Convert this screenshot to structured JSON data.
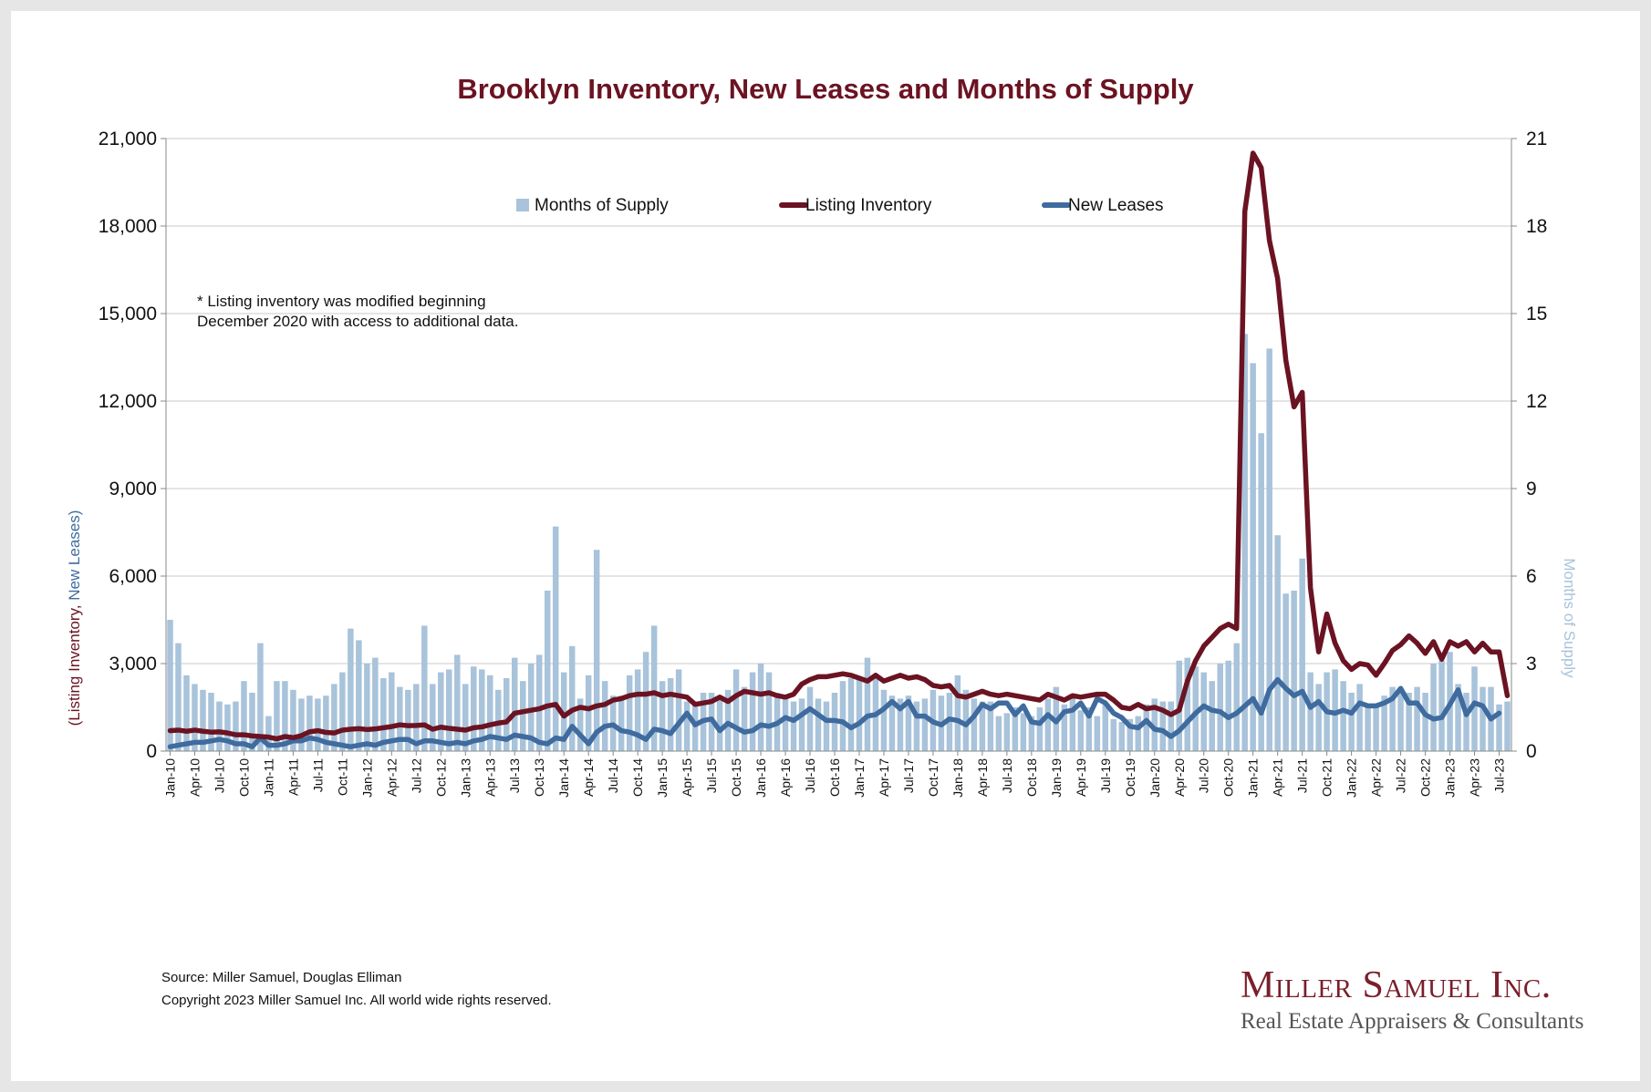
{
  "chart_data": {
    "type": "bar",
    "title": "Brooklyn Inventory, New Leases and Months of Supply",
    "ylabel_left_part1": "(Listing Inventory, ",
    "ylabel_left_part2": "New Leases)",
    "ylabel_right": "Months of Supply",
    "ylim_left": [
      0,
      21000
    ],
    "ylim_right": [
      0,
      21
    ],
    "left_ticks": [
      "0",
      "3,000",
      "6,000",
      "9,000",
      "12,000",
      "15,000",
      "18,000",
      "21,000"
    ],
    "right_ticks": [
      "0",
      "3",
      "6",
      "9",
      "12",
      "15",
      "18",
      "21"
    ],
    "start_month": "2010-01",
    "x_tick_labels": [
      "Jan-10",
      "Apr-10",
      "Jul-10",
      "Oct-10",
      "Jan-11",
      "Apr-11",
      "Jul-11",
      "Oct-11",
      "Jan-12",
      "Apr-12",
      "Jul-12",
      "Oct-12",
      "Jan-13",
      "Apr-13",
      "Jul-13",
      "Oct-13",
      "Jan-14",
      "Apr-14",
      "Jul-14",
      "Oct-14",
      "Jan-15",
      "Apr-15",
      "Jul-15",
      "Oct-15",
      "Jan-16",
      "Apr-16",
      "Jul-16",
      "Oct-16",
      "Jan-17",
      "Apr-17",
      "Jul-17",
      "Oct-17",
      "Jan-18",
      "Apr-18",
      "Jul-18",
      "Oct-18",
      "Jan-19",
      "Apr-19",
      "Jul-19",
      "Oct-19",
      "Jan-20",
      "Apr-20",
      "Jul-20",
      "Oct-20",
      "Jan-21",
      "Apr-21",
      "Jul-21",
      "Oct-21",
      "Jan-22",
      "Apr-22",
      "Jul-22",
      "Oct-22",
      "Jan-23",
      "Apr-23",
      "Jul-23"
    ],
    "grid": true,
    "legend_position": "top",
    "series": [
      {
        "name": "Months of Supply",
        "type": "bar",
        "axis": "right",
        "color": "#a8c3da",
        "values": [
          4.5,
          3.7,
          2.6,
          2.3,
          2.1,
          2.0,
          1.7,
          1.6,
          1.7,
          2.4,
          2.0,
          3.7,
          1.2,
          2.4,
          2.4,
          2.1,
          1.8,
          1.9,
          1.8,
          1.9,
          2.3,
          2.7,
          4.2,
          3.8,
          3.0,
          3.2,
          2.5,
          2.7,
          2.2,
          2.1,
          2.3,
          4.3,
          2.3,
          2.7,
          2.8,
          3.3,
          2.3,
          2.9,
          2.8,
          2.6,
          2.1,
          2.5,
          3.2,
          2.4,
          3.0,
          3.3,
          5.5,
          7.7,
          2.7,
          3.6,
          1.8,
          2.6,
          6.9,
          2.4,
          1.9,
          1.9,
          2.6,
          2.8,
          3.4,
          4.3,
          2.4,
          2.5,
          2.8,
          1.7,
          1.7,
          2.0,
          2.0,
          1.8,
          2.1,
          2.8,
          2.2,
          2.7,
          3.0,
          2.7,
          2.0,
          1.8,
          1.7,
          1.8,
          2.2,
          1.8,
          1.7,
          2.0,
          2.4,
          2.5,
          2.5,
          3.2,
          2.6,
          2.1,
          1.9,
          1.8,
          1.9,
          1.7,
          1.8,
          2.1,
          1.9,
          2.0,
          2.6,
          2.1,
          1.8,
          1.7,
          1.7,
          1.2,
          1.3,
          1.5,
          1.3,
          1.2,
          1.5,
          1.8,
          2.2,
          1.6,
          1.9,
          1.4,
          1.5,
          1.2,
          1.6,
          1.1,
          1.0,
          1.1,
          1.2,
          1.6,
          1.8,
          1.7,
          1.7,
          3.1,
          3.2,
          2.9,
          2.7,
          2.4,
          3.0,
          3.1,
          3.7,
          14.3,
          13.3,
          10.9,
          13.8,
          7.4,
          5.4,
          5.5,
          6.6,
          2.7,
          2.3,
          2.7,
          2.8,
          2.4,
          2.0,
          2.3,
          1.6,
          1.6,
          1.9,
          2.2,
          2.0,
          2.0,
          2.2,
          2.0,
          3.0,
          3.1,
          3.4,
          2.3,
          2.0,
          2.9,
          2.2,
          2.2,
          1.6,
          1.7
        ]
      },
      {
        "name": "Listing Inventory",
        "type": "line",
        "axis": "left",
        "color": "#6b1322",
        "values": [
          700,
          720,
          680,
          720,
          680,
          650,
          660,
          620,
          560,
          560,
          520,
          500,
          480,
          420,
          500,
          460,
          530,
          660,
          700,
          640,
          620,
          720,
          750,
          770,
          740,
          760,
          800,
          840,
          900,
          870,
          880,
          900,
          750,
          820,
          780,
          750,
          720,
          800,
          830,
          900,
          960,
          1000,
          1300,
          1350,
          1400,
          1450,
          1550,
          1600,
          1200,
          1400,
          1500,
          1450,
          1550,
          1600,
          1750,
          1800,
          1900,
          1950,
          1950,
          2000,
          1900,
          1950,
          1900,
          1850,
          1600,
          1650,
          1700,
          1850,
          1700,
          1900,
          2050,
          2000,
          1950,
          2000,
          1900,
          1850,
          1950,
          2300,
          2450,
          2550,
          2550,
          2600,
          2650,
          2600,
          2500,
          2400,
          2600,
          2400,
          2500,
          2600,
          2500,
          2550,
          2450,
          2250,
          2200,
          2250,
          1900,
          1850,
          1950,
          2050,
          1950,
          1900,
          1950,
          1900,
          1850,
          1800,
          1750,
          1950,
          1850,
          1750,
          1900,
          1850,
          1900,
          1950,
          1950,
          1750,
          1500,
          1450,
          1600,
          1450,
          1500,
          1400,
          1250,
          1400,
          2400,
          3100,
          3600,
          3900,
          4200,
          4350,
          4200,
          18500,
          20500,
          20000,
          17500,
          16200,
          13400,
          11800,
          12300,
          5600,
          3400,
          4700,
          3700,
          3100,
          2800,
          3000,
          2950,
          2600,
          3000,
          3450,
          3650,
          3950,
          3700,
          3350,
          3750,
          3150,
          3750,
          3600,
          3750,
          3400,
          3700,
          3400,
          3400,
          1900
        ]
      },
      {
        "name": "New Leases",
        "type": "line",
        "axis": "left",
        "color": "#3f6b9e",
        "values": [
          150,
          200,
          250,
          300,
          300,
          350,
          400,
          350,
          250,
          250,
          150,
          450,
          200,
          200,
          250,
          350,
          350,
          450,
          400,
          300,
          250,
          200,
          150,
          200,
          250,
          200,
          300,
          350,
          400,
          400,
          250,
          350,
          350,
          300,
          250,
          300,
          250,
          350,
          400,
          500,
          450,
          400,
          550,
          500,
          450,
          300,
          250,
          450,
          400,
          850,
          550,
          250,
          650,
          850,
          900,
          700,
          650,
          550,
          400,
          750,
          700,
          600,
          950,
          1300,
          900,
          1050,
          1100,
          700,
          950,
          800,
          650,
          700,
          900,
          850,
          950,
          1150,
          1050,
          1250,
          1450,
          1250,
          1050,
          1050,
          1000,
          800,
          950,
          1200,
          1250,
          1450,
          1700,
          1450,
          1700,
          1200,
          1200,
          1000,
          900,
          1100,
          1050,
          900,
          1200,
          1600,
          1450,
          1650,
          1650,
          1250,
          1550,
          1000,
          950,
          1250,
          1000,
          1350,
          1400,
          1650,
          1200,
          1800,
          1650,
          1300,
          1150,
          850,
          800,
          1050,
          750,
          700,
          500,
          700,
          1000,
          1300,
          1550,
          1400,
          1350,
          1150,
          1300,
          1550,
          1800,
          1300,
          2100,
          2450,
          2150,
          1900,
          2050,
          1500,
          1700,
          1350,
          1300,
          1400,
          1300,
          1650,
          1550,
          1550,
          1650,
          1800,
          2150,
          1650,
          1650,
          1250,
          1100,
          1150,
          1600,
          2100,
          1250,
          1650,
          1550,
          1100,
          1300
        ]
      }
    ]
  },
  "note": {
    "line1": "* Listing inventory was modified beginning",
    "line2": "December 2020 with access to additional data."
  },
  "footer": {
    "source": "Source: Miller Samuel, Douglas Elliman",
    "copyright": "Copyright 2023 Miller Samuel Inc.  All world wide rights reserved."
  },
  "logo": {
    "name": "Miller Samuel Inc.",
    "tagline": "Real Estate Appraisers & Consultants"
  }
}
